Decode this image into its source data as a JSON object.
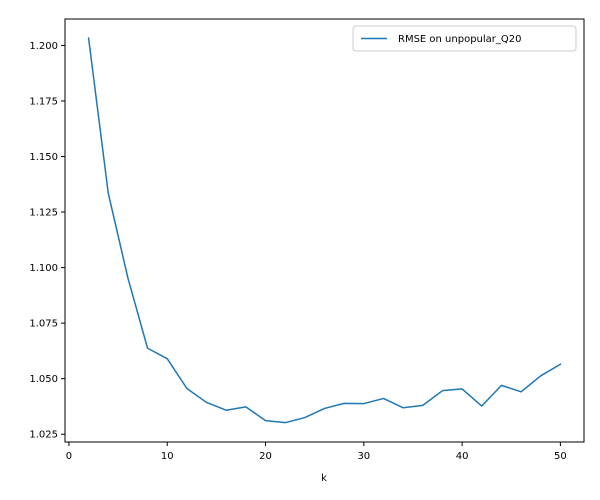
{
  "chart_data": {
    "type": "line",
    "title": "",
    "xlabel": "k",
    "ylabel": "",
    "xlim": [
      -0.4,
      52.4
    ],
    "ylim": [
      1.0215,
      1.2119
    ],
    "xticks": [
      0,
      10,
      20,
      30,
      40,
      50
    ],
    "yticks": [
      1.025,
      1.05,
      1.075,
      1.1,
      1.125,
      1.15,
      1.175,
      1.2
    ],
    "ytick_labels": [
      "1.025",
      "1.050",
      "1.075",
      "1.100",
      "1.125",
      "1.150",
      "1.175",
      "1.200"
    ],
    "grid": false,
    "legend_position": "top-right",
    "x": [
      2,
      4,
      6,
      8,
      10,
      12,
      14,
      16,
      18,
      20,
      22,
      24,
      26,
      28,
      30,
      32,
      34,
      36,
      38,
      40,
      42,
      44,
      46,
      48,
      50
    ],
    "series": [
      {
        "name": "RMSE on unpopular_Q20",
        "color": "#1f77b4",
        "values": [
          1.2033,
          1.1335,
          1.0953,
          1.0637,
          1.059,
          1.0456,
          1.0393,
          1.0358,
          1.0373,
          1.0311,
          1.0302,
          1.0325,
          1.0366,
          1.0389,
          1.0388,
          1.0411,
          1.0369,
          1.038,
          1.0446,
          1.0454,
          1.0377,
          1.047,
          1.0441,
          1.0513,
          1.0565
        ]
      }
    ]
  }
}
